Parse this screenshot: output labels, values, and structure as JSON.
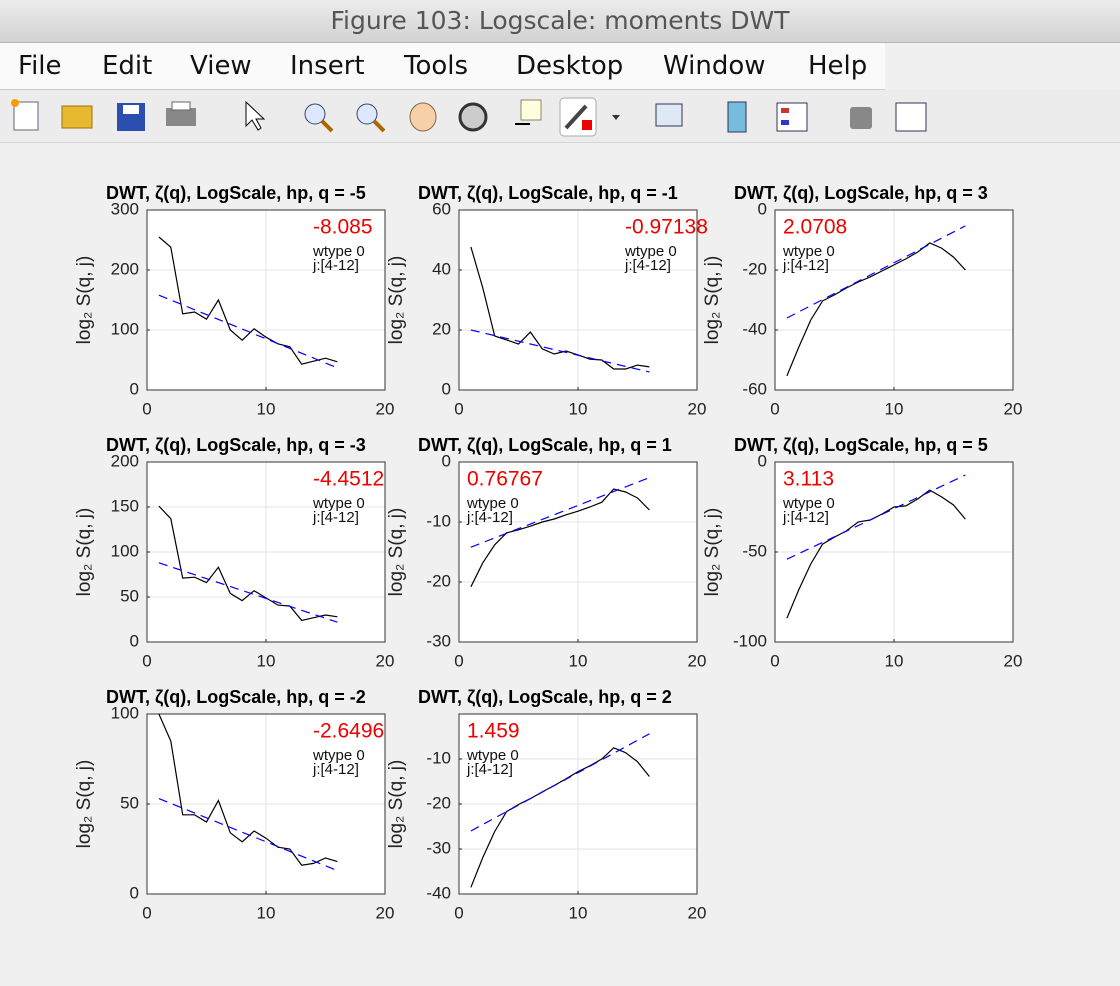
{
  "window": {
    "title": "Figure 103: Logscale: moments DWT",
    "menu": [
      "File",
      "Edit",
      "View",
      "Insert",
      "Tools",
      "Desktop",
      "Window",
      "Help"
    ]
  },
  "chart_data": [
    {
      "type": "line",
      "title": "DWT, ζ(q), LogScale, hp, q = -5",
      "ylabel": "log₂ S(q, j)",
      "annotation": "-8.085",
      "notes": [
        "wtype 0",
        "j:[4-12]"
      ],
      "xlim": [
        0,
        20
      ],
      "xticks": [
        0,
        10,
        20
      ],
      "ylim": [
        0,
        300
      ],
      "yticks": [
        0,
        100,
        200,
        300
      ],
      "grid": true,
      "series": [
        {
          "color": "#000000",
          "style": "solid",
          "x": [
            1,
            2,
            3,
            4,
            5,
            6,
            7,
            8,
            9,
            10,
            11,
            12,
            13,
            14,
            15,
            16
          ],
          "values": [
            255,
            238,
            127,
            130,
            118,
            150,
            100,
            83,
            102,
            88,
            77,
            72,
            43,
            48,
            53,
            47
          ]
        },
        {
          "color": "#0000ff",
          "style": "dashed",
          "x": [
            1,
            16
          ],
          "values": [
            158,
            37
          ]
        }
      ]
    },
    {
      "type": "line",
      "title": "DWT, ζ(q), LogScale, hp, q = -1",
      "ylabel": "log₂ S(q, j)",
      "annotation": "-0.97138",
      "notes": [
        "wtype 0",
        "j:[4-12]"
      ],
      "xlim": [
        0,
        20
      ],
      "xticks": [
        0,
        10,
        20
      ],
      "ylim": [
        0,
        60
      ],
      "yticks": [
        0,
        20,
        40,
        60
      ],
      "grid": true,
      "series": [
        {
          "color": "#000000",
          "style": "solid",
          "x": [
            1,
            2,
            3,
            4,
            5,
            6,
            7,
            8,
            9,
            10,
            11,
            12,
            13,
            14,
            15,
            16
          ],
          "values": [
            47.7,
            34,
            18,
            16.7,
            15.3,
            19.3,
            13.7,
            12,
            13,
            11.7,
            10.3,
            10,
            7,
            7,
            8.3,
            7.7
          ]
        },
        {
          "color": "#0000ff",
          "style": "dashed",
          "x": [
            1,
            16
          ],
          "values": [
            20,
            6
          ]
        }
      ]
    },
    {
      "type": "line",
      "title": "DWT, ζ(q), LogScale, hp, q = 3",
      "ylabel": "log₂ S(q, j)",
      "annotation": "2.0708",
      "notes": [
        "wtype 0",
        "j:[4-12]"
      ],
      "xlim": [
        0,
        20
      ],
      "xticks": [
        0,
        10,
        20
      ],
      "ylim": [
        -60,
        0
      ],
      "yticks": [
        -60,
        -40,
        -20,
        0
      ],
      "grid": true,
      "series": [
        {
          "color": "#000000",
          "style": "solid",
          "x": [
            1,
            2,
            3,
            4,
            5,
            6,
            7,
            8,
            9,
            10,
            11,
            12,
            13,
            14,
            15,
            16
          ],
          "values": [
            -55.3,
            -45.7,
            -36.7,
            -30.3,
            -28.3,
            -26,
            -24,
            -22.3,
            -20.3,
            -18.3,
            -16.3,
            -14,
            -11,
            -12.7,
            -15.7,
            -20
          ]
        },
        {
          "color": "#0000ff",
          "style": "dashed",
          "x": [
            1,
            16
          ],
          "values": [
            -36,
            -5.3
          ]
        }
      ]
    },
    {
      "type": "line",
      "title": "DWT, ζ(q), LogScale, hp, q = -3",
      "ylabel": "log₂ S(q, j)",
      "annotation": "-4.4512",
      "notes": [
        "wtype 0",
        "j:[4-12]"
      ],
      "xlim": [
        0,
        20
      ],
      "xticks": [
        0,
        10,
        20
      ],
      "ylim": [
        0,
        200
      ],
      "yticks": [
        0,
        50,
        100,
        150,
        200
      ],
      "grid": true,
      "series": [
        {
          "color": "#000000",
          "style": "solid",
          "x": [
            1,
            2,
            3,
            4,
            5,
            6,
            7,
            8,
            9,
            10,
            11,
            12,
            13,
            14,
            15,
            16
          ],
          "values": [
            151,
            137,
            71,
            72,
            66,
            83,
            54,
            46,
            57,
            49,
            41,
            40,
            24,
            27,
            30,
            28
          ]
        },
        {
          "color": "#0000ff",
          "style": "dashed",
          "x": [
            1,
            16
          ],
          "values": [
            88,
            22
          ]
        }
      ]
    },
    {
      "type": "line",
      "title": "DWT, ζ(q), LogScale, hp, q = 1",
      "ylabel": "log₂ S(q, j)",
      "annotation": "0.76767",
      "notes": [
        "wtype 0",
        "j:[4-12]"
      ],
      "xlim": [
        0,
        20
      ],
      "xticks": [
        0,
        10,
        20
      ],
      "ylim": [
        -30,
        0
      ],
      "yticks": [
        -30,
        -20,
        -10,
        0
      ],
      "grid": true,
      "series": [
        {
          "color": "#000000",
          "style": "solid",
          "x": [
            1,
            2,
            3,
            4,
            5,
            6,
            7,
            8,
            9,
            10,
            11,
            12,
            13,
            14,
            15,
            16
          ],
          "values": [
            -20.8,
            -16.8,
            -13.8,
            -11.8,
            -11.3,
            -10.7,
            -10,
            -9.5,
            -8.8,
            -8.2,
            -7.5,
            -6.7,
            -4.5,
            -5,
            -6,
            -8
          ]
        },
        {
          "color": "#0000ff",
          "style": "dashed",
          "x": [
            1,
            16
          ],
          "values": [
            -14.2,
            -2.6
          ]
        }
      ]
    },
    {
      "type": "line",
      "title": "DWT, ζ(q), LogScale, hp, q = 5",
      "ylabel": "log₂ S(q, j)",
      "annotation": "3.113",
      "notes": [
        "wtype 0",
        "j:[4-12]"
      ],
      "xlim": [
        0,
        20
      ],
      "xticks": [
        0,
        10,
        20
      ],
      "ylim": [
        -100,
        0
      ],
      "yticks": [
        -100,
        -50,
        0
      ],
      "grid": true,
      "series": [
        {
          "color": "#000000",
          "style": "solid",
          "x": [
            1,
            2,
            3,
            4,
            5,
            6,
            7,
            8,
            9,
            10,
            11,
            12,
            13,
            14,
            15,
            16
          ],
          "values": [
            -86.7,
            -71,
            -56.7,
            -45.6,
            -41.7,
            -38.3,
            -33.3,
            -32.2,
            -28.9,
            -25,
            -24.4,
            -20.5,
            -15.6,
            -19.4,
            -23.9,
            -31.7
          ]
        },
        {
          "color": "#0000ff",
          "style": "dashed",
          "x": [
            1,
            16
          ],
          "values": [
            -54,
            -7.2
          ]
        }
      ]
    },
    {
      "type": "line",
      "title": "DWT, ζ(q), LogScale, hp, q = -2",
      "ylabel": "log₂ S(q, j)",
      "annotation": "-2.6496",
      "notes": [
        "wtype 0",
        "j:[4-12]"
      ],
      "xlim": [
        0,
        20
      ],
      "xticks": [
        0,
        10,
        20
      ],
      "ylim": [
        0,
        100
      ],
      "yticks": [
        0,
        50,
        100
      ],
      "grid": true,
      "series": [
        {
          "color": "#000000",
          "style": "solid",
          "x": [
            1,
            2,
            3,
            4,
            5,
            6,
            7,
            8,
            9,
            10,
            11,
            12,
            13,
            14,
            15,
            16
          ],
          "values": [
            100,
            85,
            44,
            44,
            40,
            52,
            34,
            29,
            35,
            31,
            26,
            25,
            16,
            17,
            20,
            18
          ]
        },
        {
          "color": "#0000ff",
          "style": "dashed",
          "x": [
            1,
            16
          ],
          "values": [
            53,
            13
          ]
        }
      ]
    },
    {
      "type": "line",
      "title": "DWT, ζ(q), LogScale, hp, q = 2",
      "ylabel": "log₂ S(q, j)",
      "annotation": "1.459",
      "notes": [
        "wtype 0",
        "j:[4-12]"
      ],
      "xlim": [
        0,
        20
      ],
      "xticks": [
        0,
        10,
        20
      ],
      "ylim": [
        -40,
        0
      ],
      "yticks": [
        -40,
        -30,
        -20,
        -10
      ],
      "grid": true,
      "series": [
        {
          "color": "#000000",
          "style": "solid",
          "x": [
            1,
            2,
            3,
            4,
            5,
            6,
            7,
            8,
            9,
            10,
            11,
            12,
            13,
            14,
            15,
            16
          ],
          "values": [
            -38.5,
            -31.9,
            -26.1,
            -21.7,
            -20.1,
            -18.8,
            -17.3,
            -15.9,
            -14.4,
            -12.8,
            -11.5,
            -10,
            -7.5,
            -8.6,
            -10.6,
            -13.9
          ]
        },
        {
          "color": "#0000ff",
          "style": "dashed",
          "x": [
            1,
            16
          ],
          "values": [
            -26,
            -4.4
          ]
        }
      ]
    }
  ]
}
